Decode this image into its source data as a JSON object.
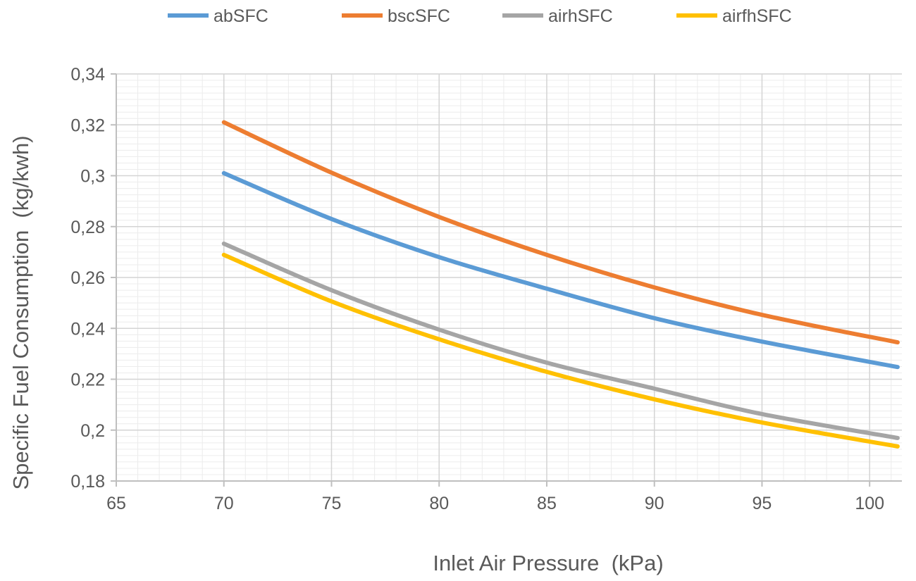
{
  "chart_data": {
    "type": "line",
    "title": "",
    "xlabel": "Inlet Air Pressure  (kPa)",
    "ylabel": "Specific Fuel Consumption  (kg/kwh)",
    "xlim": [
      65,
      101.5
    ],
    "ylim": [
      0.18,
      0.34
    ],
    "xticks": [
      65,
      70,
      75,
      80,
      85,
      90,
      95,
      100
    ],
    "yticks": [
      0.18,
      0.2,
      0.22,
      0.24,
      0.26,
      0.28,
      0.3,
      0.32,
      0.34
    ],
    "xtick_labels": [
      "65",
      "70",
      "75",
      "80",
      "85",
      "90",
      "95",
      "100"
    ],
    "ytick_labels": [
      "0,18",
      "0,2",
      "0,22",
      "0,24",
      "0,26",
      "0,28",
      "0,3",
      "0,32",
      "0,34"
    ],
    "grid": true,
    "minor_grid": true,
    "legend_position": "top",
    "x": [
      70,
      75,
      80,
      85,
      90,
      95,
      101.3
    ],
    "series": [
      {
        "name": "abSFC",
        "color": "#5B9BD5",
        "values": [
          0.301,
          0.283,
          0.268,
          0.2556,
          0.244,
          0.2348,
          0.2248
        ]
      },
      {
        "name": "bscSFC",
        "color": "#ED7D31",
        "values": [
          0.321,
          0.3012,
          0.2838,
          0.2689,
          0.2561,
          0.2453,
          0.2345
        ]
      },
      {
        "name": "airhSFC",
        "color": "#A5A5A5",
        "values": [
          0.2733,
          0.255,
          0.2395,
          0.2265,
          0.2163,
          0.2063,
          0.1969
        ]
      },
      {
        "name": "airfhSFC",
        "color": "#FFC000",
        "values": [
          0.2689,
          0.2506,
          0.2357,
          0.2229,
          0.2121,
          0.203,
          0.1936
        ]
      }
    ]
  }
}
